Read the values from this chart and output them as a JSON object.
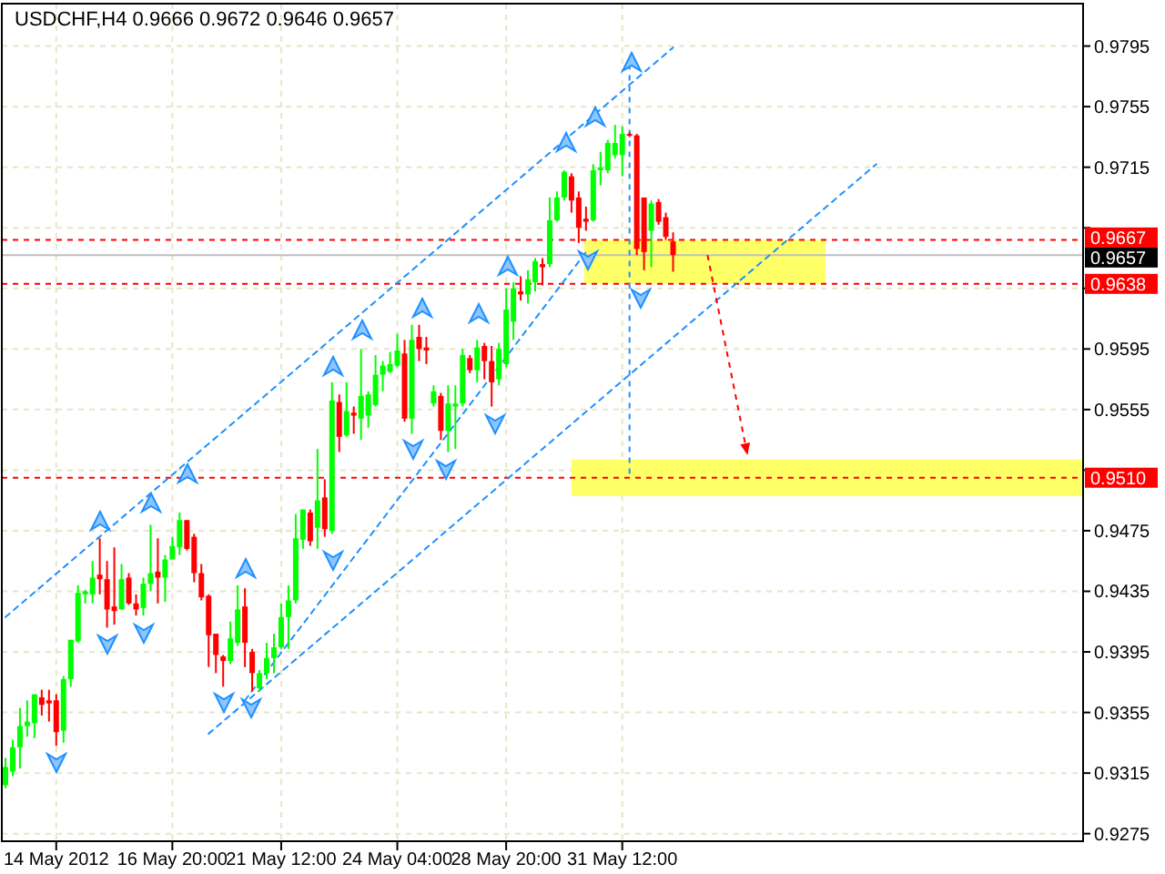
{
  "chart_data": {
    "type": "candlestick",
    "title": "USDCHF,H4  0.9666 0.9672 0.9646 0.9657",
    "categories": [
      null,
      null,
      null,
      null,
      null,
      null,
      null,
      "14 May 2012",
      null,
      null,
      null,
      null,
      null,
      null,
      null,
      null,
      null,
      null,
      null,
      null,
      null,
      null,
      null,
      "16 May 20:00",
      null,
      null,
      null,
      null,
      null,
      null,
      null,
      null,
      null,
      null,
      null,
      null,
      null,
      null,
      "21 May 12:00",
      null,
      null,
      null,
      null,
      null,
      null,
      null,
      null,
      null,
      null,
      null,
      null,
      null,
      null,
      null,
      "24 May 04:00",
      null,
      null,
      null,
      null,
      null,
      null,
      null,
      null,
      null,
      null,
      null,
      null,
      null,
      null,
      "28 May 20:00",
      null,
      null,
      null,
      null,
      null,
      null,
      null,
      null,
      null,
      null,
      null,
      null,
      null,
      null,
      null,
      "31 May 12:00",
      null,
      null,
      null,
      null,
      null,
      null,
      null,
      null,
      null,
      null,
      null,
      null,
      null,
      null,
      null,
      null,
      null,
      null,
      null,
      null,
      null,
      null,
      null,
      null,
      null,
      null,
      null,
      null,
      null,
      null,
      null,
      null,
      null,
      null,
      null,
      null,
      null,
      null,
      null,
      null,
      null,
      null,
      null,
      null,
      null,
      null,
      null,
      null,
      null,
      null,
      null,
      null,
      null,
      null,
      null,
      null,
      null,
      null,
      null,
      null,
      null,
      null,
      null
    ],
    "ylim": [
      0.927,
      0.9823
    ],
    "yticks": [
      0.9795,
      0.9755,
      0.9715,
      {
        "value": 0.9675,
        "label": null
      },
      {
        "value": 0.9635,
        "label": null
      },
      0.9595,
      0.9555,
      {
        "value": 0.9515,
        "label": null
      },
      0.9475,
      0.9435,
      0.9395,
      0.9355,
      0.9315,
      0.9275
    ],
    "grid": true,
    "ohlc": [
      [
        0.9307,
        0.9325,
        0.9305,
        0.9319
      ],
      [
        0.9316,
        0.9337,
        0.9313,
        0.9332
      ],
      [
        0.9332,
        0.9358,
        0.9318,
        0.9346
      ],
      [
        0.9346,
        0.9363,
        0.9339,
        0.9349
      ],
      [
        0.9348,
        0.9367,
        0.9338,
        0.9367
      ],
      [
        0.9365,
        0.937,
        0.9353,
        0.936
      ],
      [
        0.9363,
        0.937,
        0.9349,
        0.9361
      ],
      [
        0.9363,
        0.9367,
        0.9333,
        0.9342
      ],
      [
        0.9343,
        0.9379,
        0.9335,
        0.9377
      ],
      [
        0.9377,
        0.9403,
        0.9372,
        0.9403
      ],
      [
        0.9402,
        0.9439,
        0.9401,
        0.9434
      ],
      [
        0.9433,
        0.9436,
        0.9427,
        0.9435
      ],
      [
        0.9433,
        0.9455,
        0.9427,
        0.9444
      ],
      [
        0.9446,
        0.947,
        0.9433,
        0.9443
      ],
      [
        0.9443,
        0.9455,
        0.9411,
        0.9423
      ],
      [
        0.9425,
        0.9464,
        0.9413,
        0.9422
      ],
      [
        0.9423,
        0.9453,
        0.9423,
        0.9443
      ],
      [
        0.9444,
        0.9447,
        0.9426,
        0.9427
      ],
      [
        0.9427,
        0.9433,
        0.9419,
        0.9423
      ],
      [
        0.9424,
        0.9444,
        0.9419,
        0.944
      ],
      [
        0.944,
        0.9479,
        0.9435,
        0.9447
      ],
      [
        0.9448,
        0.947,
        0.9427,
        0.9444
      ],
      [
        0.9444,
        0.9459,
        0.9428,
        0.9456
      ],
      [
        0.9456,
        0.9471,
        0.9456,
        0.9465
      ],
      [
        0.9464,
        0.9487,
        0.9459,
        0.9482
      ],
      [
        0.9482,
        0.9482,
        0.9462,
        0.9463
      ],
      [
        0.9471,
        0.9473,
        0.9441,
        0.9447
      ],
      [
        0.9447,
        0.9453,
        0.9429,
        0.9431
      ],
      [
        0.9432,
        0.9433,
        0.9385,
        0.9406
      ],
      [
        0.9407,
        0.9407,
        0.9381,
        0.9393
      ],
      [
        0.9392,
        0.9393,
        0.9372,
        0.9389
      ],
      [
        0.9389,
        0.9415,
        0.9387,
        0.9404
      ],
      [
        0.9401,
        0.9439,
        0.9399,
        0.9423
      ],
      [
        0.9425,
        0.9437,
        0.9385,
        0.9401
      ],
      [
        0.9395,
        0.9397,
        0.9369,
        0.9381
      ],
      [
        0.9371,
        0.9383,
        0.9369,
        0.9381
      ],
      [
        0.9381,
        0.9401,
        0.9377,
        0.9391
      ],
      [
        0.9391,
        0.9407,
        0.9381,
        0.9398
      ],
      [
        0.9398,
        0.9427,
        0.9397,
        0.9418
      ],
      [
        0.9418,
        0.9439,
        0.9397,
        0.9429
      ],
      [
        0.9429,
        0.9486,
        0.9427,
        0.947
      ],
      [
        0.9469,
        0.9489,
        0.9463,
        0.9489
      ],
      [
        0.9487,
        0.9489,
        0.9465,
        0.9468
      ],
      [
        0.9477,
        0.9529,
        0.9463,
        0.9495
      ],
      [
        0.9497,
        0.9509,
        0.9471,
        0.9476
      ],
      [
        0.9475,
        0.9573,
        0.9473,
        0.9561
      ],
      [
        0.956,
        0.9565,
        0.9527,
        0.9537
      ],
      [
        0.9538,
        0.9573,
        0.9537,
        0.9554
      ],
      [
        0.9553,
        0.9557,
        0.9539,
        0.9551
      ],
      [
        0.9549,
        0.9595,
        0.9535,
        0.9564
      ],
      [
        0.9551,
        0.9567,
        0.9543,
        0.9565
      ],
      [
        0.9558,
        0.9591,
        0.9557,
        0.9578
      ],
      [
        0.9578,
        0.9587,
        0.9567,
        0.9584
      ],
      [
        0.958,
        0.9593,
        0.9579,
        0.9585
      ],
      [
        0.9584,
        0.9605,
        0.9583,
        0.9594
      ],
      [
        0.9592,
        0.9601,
        0.9547,
        0.9549
      ],
      [
        0.9549,
        0.9611,
        0.9539,
        0.9601
      ],
      [
        0.9603,
        0.9611,
        0.9587,
        0.9595
      ],
      [
        0.9596,
        0.9603,
        0.9585,
        0.9594
      ],
      [
        0.9559,
        0.9571,
        0.9557,
        0.9567
      ],
      [
        0.9564,
        0.9566,
        0.9535,
        0.9541
      ],
      [
        0.9541,
        0.9571,
        0.9527,
        0.9559
      ],
      [
        0.9557,
        0.9571,
        0.9529,
        0.9559
      ],
      [
        0.9559,
        0.9595,
        0.9557,
        0.9591
      ],
      [
        0.9589,
        0.9591,
        0.9579,
        0.9581
      ],
      [
        0.9581,
        0.9601,
        0.9573,
        0.9596
      ],
      [
        0.9597,
        0.9599,
        0.9575,
        0.9587
      ],
      [
        0.9587,
        0.9597,
        0.9557,
        0.9573
      ],
      [
        0.9575,
        0.9599,
        0.9571,
        0.9595
      ],
      [
        0.9585,
        0.9635,
        0.9583,
        0.9621
      ],
      [
        0.9613,
        0.9639,
        0.9601,
        0.9635
      ],
      [
        0.9633,
        0.9643,
        0.9627,
        0.9631
      ],
      [
        0.9631,
        0.9647,
        0.9625,
        0.9641
      ],
      [
        0.9639,
        0.9655,
        0.9633,
        0.9653
      ],
      [
        0.9651,
        0.9655,
        0.9637,
        0.9649
      ],
      [
        0.9651,
        0.9695,
        0.9649,
        0.968
      ],
      [
        0.968,
        0.9699,
        0.9679,
        0.9695
      ],
      [
        0.9695,
        0.9713,
        0.9693,
        0.9712
      ],
      [
        0.9709,
        0.9711,
        0.9685,
        0.9693
      ],
      [
        0.9695,
        0.9699,
        0.9665,
        0.9675
      ],
      [
        0.9681,
        0.9689,
        0.9673,
        0.9679
      ],
      [
        0.968,
        0.9717,
        0.9679,
        0.9713
      ],
      [
        0.9713,
        0.9725,
        0.9703,
        0.9715
      ],
      [
        0.9713,
        0.9733,
        0.9711,
        0.9731
      ],
      [
        0.9723,
        0.9743,
        0.9721,
        0.9731
      ],
      [
        0.9723,
        0.9742,
        0.9709,
        0.9737
      ],
      [
        0.9737,
        0.9738,
        0.9735,
        0.9736
      ],
      [
        0.9736,
        0.9737,
        0.9657,
        0.9661
      ],
      [
        0.9695,
        0.9695,
        0.9647,
        0.9659
      ],
      [
        0.9673,
        0.9693,
        0.9649,
        0.9691
      ],
      [
        0.9692,
        0.9694,
        0.9677,
        0.9679
      ],
      [
        0.9682,
        0.9685,
        0.9667,
        0.9669
      ],
      [
        0.9666,
        0.9672,
        0.9646,
        0.9657
      ],
      null,
      null,
      null,
      null,
      null,
      null,
      null,
      null,
      null,
      null,
      null,
      null,
      null,
      null,
      null,
      null,
      null,
      null,
      null,
      null,
      null,
      null,
      null,
      null,
      null,
      null,
      null,
      null,
      null,
      null,
      null,
      null,
      null,
      null,
      null,
      null,
      null,
      null,
      null,
      null,
      null,
      null,
      null,
      null,
      null,
      null,
      null,
      null,
      null,
      null,
      null,
      null,
      null,
      null,
      null,
      null
    ],
    "series": [
      {
        "type": "line",
        "color": "#1e90ff",
        "line_style": "dashed",
        "values": [
          0.9418,
          null,
          null,
          null,
          null,
          null,
          null,
          null,
          null,
          null,
          null,
          null,
          null,
          null,
          null,
          null,
          null,
          null,
          null,
          null,
          null,
          null,
          null,
          null,
          null,
          null,
          null,
          null,
          null,
          null,
          null,
          null,
          null,
          null,
          null,
          null,
          null,
          null,
          null,
          null,
          null,
          null,
          null,
          null,
          null,
          null,
          null,
          null,
          null,
          null,
          null,
          null,
          null,
          null,
          null,
          null,
          null,
          null,
          null,
          null,
          null,
          null,
          null,
          null,
          null,
          null,
          null,
          null,
          null,
          null,
          null,
          null,
          null,
          null,
          null,
          null,
          null,
          null,
          null,
          null,
          null,
          null,
          null,
          null,
          null,
          null,
          null,
          null,
          null,
          null,
          null,
          null,
          0.9794,
          null,
          null,
          null,
          null,
          null,
          null,
          null,
          null,
          null,
          null,
          null,
          null,
          null,
          null,
          null,
          null,
          null,
          null,
          null,
          null,
          null,
          null,
          null,
          null,
          null,
          null,
          null,
          null,
          null,
          null,
          null,
          null,
          null,
          null,
          null,
          null,
          null,
          null,
          null,
          null,
          null,
          null,
          null,
          null,
          null,
          null,
          null,
          null,
          null,
          null,
          null,
          null,
          null,
          null,
          null,
          null
        ]
      },
      {
        "type": "line",
        "color": "#1e90ff",
        "line_style": "dashed",
        "values": [
          null,
          null,
          null,
          null,
          null,
          null,
          null,
          null,
          null,
          null,
          null,
          null,
          null,
          null,
          null,
          null,
          null,
          null,
          null,
          null,
          null,
          null,
          null,
          null,
          null,
          null,
          null,
          null,
          null,
          null,
          null,
          null,
          null,
          0.9363,
          null,
          null,
          null,
          null,
          null,
          null,
          null,
          null,
          null,
          null,
          null,
          null,
          null,
          null,
          null,
          null,
          null,
          null,
          null,
          null,
          null,
          null,
          null,
          null,
          null,
          null,
          null,
          null,
          null,
          null,
          null,
          null,
          null,
          null,
          null,
          null,
          null,
          null,
          null,
          null,
          null,
          null,
          null,
          null,
          null,
          null,
          0.9659,
          null,
          null,
          null,
          null,
          null,
          null,
          null,
          null,
          null,
          null,
          null,
          null,
          null,
          null,
          null,
          null,
          null,
          null,
          null,
          null,
          null,
          null,
          null,
          null,
          null,
          null,
          null,
          null,
          null,
          null,
          null,
          null,
          null,
          null,
          null,
          null,
          null,
          null,
          null,
          null,
          null,
          null,
          null,
          null,
          null,
          null,
          null,
          null,
          null,
          null,
          null,
          null,
          null,
          null,
          null,
          null,
          null,
          null,
          null,
          null,
          null,
          null,
          null,
          null,
          null,
          null,
          null,
          null
        ]
      },
      {
        "type": "line",
        "color": "#1e90ff",
        "line_style": "dashed",
        "values": [
          null,
          null,
          null,
          null,
          null,
          null,
          null,
          null,
          null,
          null,
          null,
          null,
          null,
          null,
          null,
          null,
          null,
          null,
          null,
          null,
          null,
          null,
          null,
          null,
          null,
          null,
          null,
          null,
          0.9341,
          null,
          null,
          null,
          null,
          null,
          null,
          null,
          null,
          null,
          null,
          null,
          null,
          null,
          null,
          null,
          null,
          null,
          null,
          null,
          null,
          null,
          null,
          null,
          null,
          null,
          null,
          null,
          null,
          null,
          null,
          null,
          null,
          null,
          null,
          null,
          null,
          null,
          null,
          null,
          null,
          null,
          null,
          null,
          null,
          null,
          null,
          null,
          null,
          null,
          null,
          null,
          null,
          null,
          null,
          null,
          null,
          null,
          null,
          null,
          null,
          null,
          null,
          null,
          null,
          null,
          null,
          null,
          null,
          null,
          null,
          null,
          null,
          null,
          null,
          null,
          null,
          null,
          null,
          null,
          null,
          null,
          null,
          null,
          null,
          null,
          null,
          null,
          null,
          null,
          null,
          null,
          0.9717,
          null,
          null,
          null,
          null,
          null,
          null,
          null,
          null,
          null,
          null,
          null,
          null,
          null,
          null,
          null,
          null,
          null,
          null,
          null,
          null,
          null,
          null,
          null,
          null,
          null,
          null,
          null,
          null
        ]
      }
    ],
    "bands": [
      {
        "axis": "y",
        "from": 0.9638,
        "to": 0.9667,
        "color": "#ffff66"
      },
      {
        "axis": "y",
        "from": 0.9498,
        "to": 0.9522,
        "color": "#ffff66"
      }
    ],
    "ref_lines": [
      {
        "axis": "y",
        "value": 0.9667,
        "label": "0.9667",
        "color": "#ff0000",
        "line_style": "dashed"
      },
      {
        "axis": "y",
        "value": 0.9638,
        "label": "0.9638",
        "color": "#ff0000",
        "line_style": "dashed"
      },
      {
        "axis": "y",
        "value": 0.951,
        "label": "0.9510",
        "color": "#ff0000",
        "line_style": "dashed"
      },
      {
        "axis": "y",
        "value": 0.9657,
        "label": "0.9657",
        "color": "#c0c0c0",
        "line_style": "solid"
      }
    ]
  }
}
